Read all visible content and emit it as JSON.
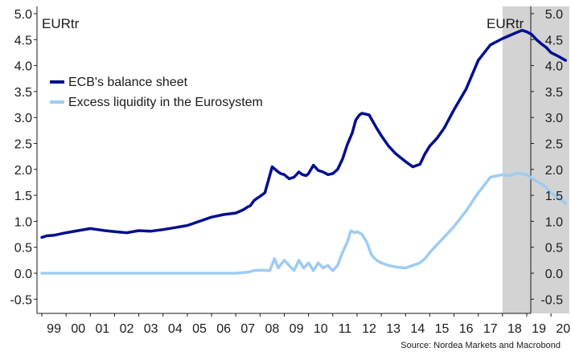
{
  "chart_data": {
    "type": "line",
    "unit_left": "EURtr",
    "unit_right": "EURtr",
    "source": "Source: Nordea Markets and Macrobond",
    "y_ticks": [
      "5.0",
      "4.5",
      "4.0",
      "3.5",
      "3.0",
      "2.5",
      "2.0",
      "1.5",
      "1.0",
      "0.5",
      "0.0",
      "-0.5"
    ],
    "x_ticks": [
      "99",
      "00",
      "01",
      "02",
      "03",
      "04",
      "05",
      "06",
      "07",
      "08",
      "09",
      "10",
      "11",
      "12",
      "13",
      "14",
      "15",
      "16",
      "17",
      "18",
      "19",
      "20"
    ],
    "ylim": [
      -0.6,
      5.1
    ],
    "xlim": [
      1998.9,
      2020.75
    ],
    "shaded_region": {
      "from": 2018.0,
      "to": 2020.75,
      "color": "#d3d3d3"
    },
    "series": [
      {
        "name": "ECB's balance sheet",
        "color": "#000f8f",
        "x": [
          1999.0,
          1999.2,
          1999.5,
          2000.0,
          2000.5,
          2001.0,
          2001.3,
          2001.6,
          2002.0,
          2002.5,
          2003.0,
          2003.5,
          2004.0,
          2004.5,
          2005.0,
          2005.5,
          2006.0,
          2006.5,
          2007.0,
          2007.3,
          2007.5,
          2007.6,
          2007.75,
          2007.9,
          2008.0,
          2008.2,
          2008.5,
          2008.75,
          2008.85,
          2009.0,
          2009.2,
          2009.4,
          2009.6,
          2009.75,
          2009.9,
          2010.0,
          2010.2,
          2010.4,
          2010.6,
          2010.8,
          2011.0,
          2011.2,
          2011.4,
          2011.6,
          2011.8,
          2011.95,
          2012.1,
          2012.2,
          2012.5,
          2012.8,
          2013.0,
          2013.3,
          2013.6,
          2014.0,
          2014.3,
          2014.6,
          2014.8,
          2015.0,
          2015.3,
          2015.6,
          2016.0,
          2016.5,
          2017.0,
          2017.5,
          2018.0,
          2018.5,
          2018.8,
          2019.0,
          2019.2,
          2019.4,
          2019.6,
          2019.8,
          2020.0,
          2020.3,
          2020.6
        ],
        "values": [
          0.69,
          0.72,
          0.73,
          0.78,
          0.82,
          0.86,
          0.84,
          0.82,
          0.8,
          0.78,
          0.82,
          0.81,
          0.84,
          0.88,
          0.92,
          1.0,
          1.08,
          1.13,
          1.16,
          1.22,
          1.28,
          1.3,
          1.4,
          1.45,
          1.48,
          1.55,
          2.05,
          1.95,
          1.92,
          1.9,
          1.82,
          1.85,
          1.95,
          1.9,
          1.88,
          1.92,
          2.08,
          1.98,
          1.95,
          1.9,
          1.92,
          2.0,
          2.2,
          2.48,
          2.7,
          2.95,
          3.05,
          3.08,
          3.05,
          2.8,
          2.65,
          2.45,
          2.3,
          2.15,
          2.05,
          2.1,
          2.3,
          2.45,
          2.6,
          2.8,
          3.15,
          3.55,
          4.1,
          4.4,
          4.52,
          4.62,
          4.68,
          4.65,
          4.6,
          4.5,
          4.42,
          4.35,
          4.25,
          4.18,
          4.1
        ]
      },
      {
        "name": "Excess liquidity in the Eurosystem",
        "color": "#9fcbf2",
        "x": [
          1999.0,
          2000.0,
          2001.0,
          2002.0,
          2003.0,
          2004.0,
          2005.0,
          2006.0,
          2007.0,
          2007.5,
          2007.75,
          2008.0,
          2008.4,
          2008.6,
          2008.75,
          2009.0,
          2009.2,
          2009.4,
          2009.6,
          2009.8,
          2010.0,
          2010.2,
          2010.4,
          2010.6,
          2010.8,
          2011.0,
          2011.2,
          2011.4,
          2011.6,
          2011.75,
          2011.9,
          2012.0,
          2012.2,
          2012.4,
          2012.6,
          2012.8,
          2013.0,
          2013.3,
          2013.6,
          2014.0,
          2014.3,
          2014.6,
          2014.8,
          2015.0,
          2015.3,
          2015.6,
          2016.0,
          2016.5,
          2017.0,
          2017.5,
          2018.0,
          2018.3,
          2018.6,
          2019.0,
          2019.3,
          2019.6,
          2019.8,
          2020.0,
          2020.3,
          2020.6
        ],
        "values": [
          0.0,
          0.0,
          0.0,
          0.0,
          0.0,
          0.0,
          0.0,
          0.0,
          0.0,
          0.02,
          0.05,
          0.06,
          0.05,
          0.28,
          0.1,
          0.25,
          0.15,
          0.05,
          0.25,
          0.1,
          0.2,
          0.05,
          0.2,
          0.1,
          0.15,
          0.05,
          0.15,
          0.4,
          0.6,
          0.82,
          0.78,
          0.8,
          0.75,
          0.6,
          0.35,
          0.25,
          0.2,
          0.15,
          0.12,
          0.1,
          0.15,
          0.2,
          0.28,
          0.4,
          0.55,
          0.7,
          0.9,
          1.2,
          1.55,
          1.85,
          1.9,
          1.88,
          1.93,
          1.9,
          1.8,
          1.72,
          1.65,
          1.55,
          1.45,
          1.35
        ]
      }
    ]
  }
}
